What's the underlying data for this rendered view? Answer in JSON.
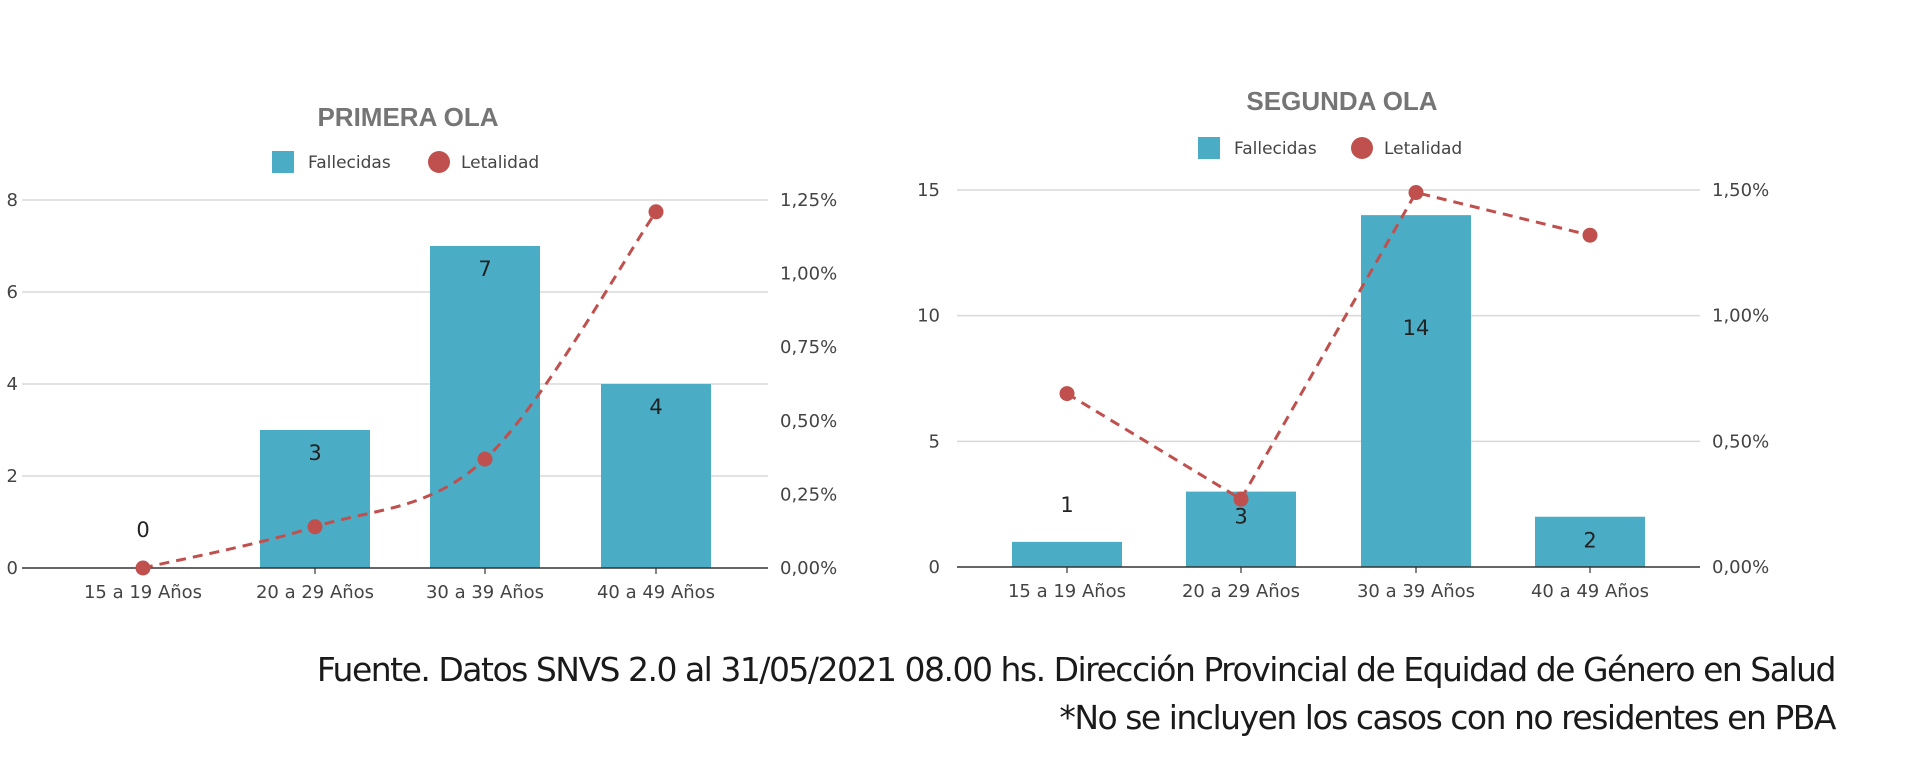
{
  "colors": {
    "bar": "#4bacc6",
    "line": "#c0504d",
    "grid": "#d9d9d9",
    "axis": "#333333",
    "zero_label": "#4bacc6"
  },
  "chart_data": [
    {
      "type": "bar+line",
      "title": "PRIMERA OLA",
      "legend": {
        "position": "top",
        "entries": [
          "Fallecidas",
          "Letalidad"
        ]
      },
      "categories": [
        "15 a 19 Años",
        "20 a 29 Años",
        "30 a 39 Años",
        "40 a 49 Años"
      ],
      "series": [
        {
          "name": "Fallecidas",
          "type": "bar",
          "axis": "left",
          "values": [
            0,
            3,
            7,
            4
          ],
          "data_labels": [
            "0",
            "3",
            "7",
            "4"
          ]
        },
        {
          "name": "Letalidad",
          "type": "line",
          "style": "dashed",
          "axis": "right",
          "values": [
            0.0,
            0.14,
            0.37,
            1.21
          ]
        }
      ],
      "y_left": {
        "min": 0,
        "max": 8,
        "ticks": [
          0,
          2,
          4,
          6,
          8
        ],
        "tick_labels": [
          "0",
          "2",
          "4",
          "6",
          "8"
        ]
      },
      "y_right": {
        "min": 0,
        "max": 1.25,
        "ticks": [
          0,
          0.25,
          0.5,
          0.75,
          1.0,
          1.25
        ],
        "tick_labels": [
          "0,00%",
          "0,25%",
          "0,50%",
          "0,75%",
          "1,00%",
          "1,25%"
        ]
      },
      "grid": true
    },
    {
      "type": "bar+line",
      "title": "SEGUNDA OLA",
      "legend": {
        "position": "top",
        "entries": [
          "Fallecidas",
          "Letalidad"
        ]
      },
      "categories": [
        "15 a 19 Años",
        "20 a 29 Años",
        "30 a 39 Años",
        "40 a 49 Años"
      ],
      "series": [
        {
          "name": "Fallecidas",
          "type": "bar",
          "axis": "left",
          "values": [
            1,
            3,
            14,
            2
          ],
          "data_labels": [
            "1",
            "3",
            "14",
            "2"
          ]
        },
        {
          "name": "Letalidad",
          "type": "line",
          "style": "dashed",
          "axis": "right",
          "values": [
            0.69,
            0.27,
            1.49,
            1.32
          ]
        }
      ],
      "y_left": {
        "min": 0,
        "max": 15,
        "ticks": [
          0,
          5,
          10,
          15
        ],
        "tick_labels": [
          "0",
          "5",
          "10",
          "15"
        ]
      },
      "y_right": {
        "min": 0,
        "max": 1.5,
        "ticks": [
          0,
          0.5,
          1.0,
          1.5
        ],
        "tick_labels": [
          "0,00%",
          "0,50%",
          "1,00%",
          "1,50%"
        ]
      },
      "grid": true
    }
  ],
  "footer": {
    "source": "Fuente. Datos SNVS 2.0 al 31/05/2021 08.00 hs. Dirección Provincial de Equidad de Género en Salud",
    "note": "*No se incluyen los casos con no residentes en PBA"
  }
}
